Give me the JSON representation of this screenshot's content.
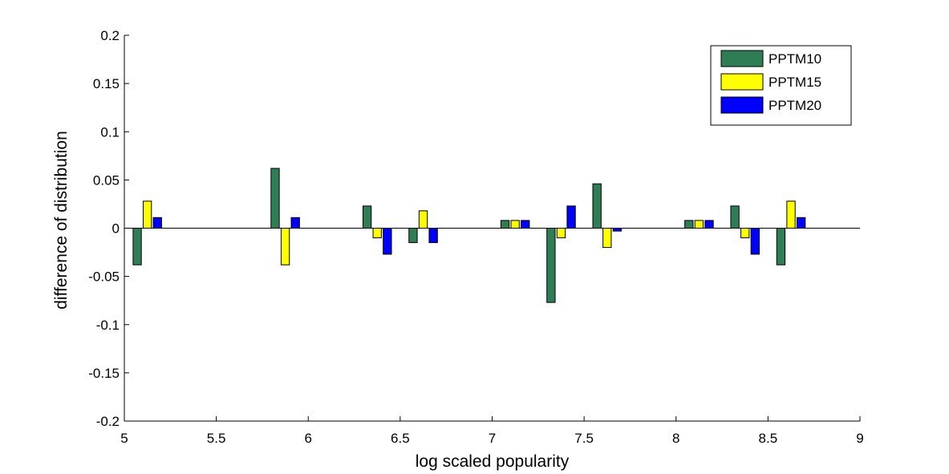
{
  "chart_data": {
    "type": "bar",
    "xlabel": "log scaled popularity",
    "ylabel": "difference of distribution",
    "xlim": [
      5,
      9
    ],
    "ylim": [
      -0.2,
      0.2
    ],
    "xticks": [
      "5",
      "5.5",
      "6",
      "6.5",
      "7",
      "7.5",
      "8",
      "8.5",
      "9"
    ],
    "yticks": [
      "-0.2",
      "-0.15",
      "-0.1",
      "-0.05",
      "0",
      "0.05",
      "0.1",
      "0.15",
      "0.2"
    ],
    "grid": false,
    "legend_position": "top-right",
    "group_centers": [
      5.125,
      5.875,
      6.375,
      6.625,
      7.125,
      7.375,
      7.625,
      8.125,
      8.375,
      8.625
    ],
    "series": [
      {
        "name": "PPTM10",
        "color": "#2e7d54",
        "values": [
          -0.038,
          0.062,
          0.023,
          -0.015,
          0.008,
          -0.077,
          0.046,
          0.008,
          0.023,
          -0.038
        ]
      },
      {
        "name": "PPTM15",
        "color": "#ffff00",
        "values": [
          0.028,
          -0.038,
          -0.01,
          0.018,
          0.008,
          -0.01,
          -0.02,
          0.008,
          -0.01,
          0.028
        ]
      },
      {
        "name": "PPTM20",
        "color": "#0000ff",
        "values": [
          0.011,
          0.011,
          -0.027,
          -0.015,
          0.008,
          0.023,
          -0.003,
          0.008,
          -0.027,
          0.011
        ]
      }
    ]
  }
}
